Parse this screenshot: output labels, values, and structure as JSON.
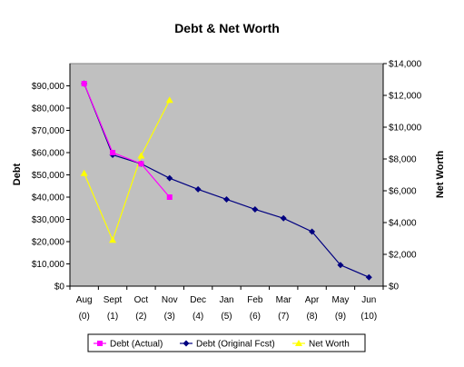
{
  "chart_data": {
    "type": "line",
    "title": "Debt & Net Worth",
    "ylabel_left": "Debt",
    "ylabel_right": "Net Worth",
    "xlabel": "",
    "categories": [
      "Aug",
      "Sept",
      "Oct",
      "Nov",
      "Dec",
      "Jan",
      "Feb",
      "Mar",
      "Apr",
      "May",
      "Jun"
    ],
    "category_sublabels": [
      "(0)",
      "(1)",
      "(2)",
      "(3)",
      "(4)",
      "(5)",
      "(6)",
      "(7)",
      "(8)",
      "(9)",
      "(10)"
    ],
    "ylim_left": [
      0,
      100000
    ],
    "ylim_right": [
      0,
      14000
    ],
    "yticks_left": [
      "$0",
      "$10,000",
      "$20,000",
      "$30,000",
      "$40,000",
      "$50,000",
      "$60,000",
      "$70,000",
      "$80,000",
      "$90,000"
    ],
    "yticks_right": [
      "$0",
      "$2,000",
      "$4,000",
      "$6,000",
      "$8,000",
      "$10,000",
      "$12,000",
      "$14,000"
    ],
    "plot_background": "#c0c0c0",
    "grid": false,
    "legend_position": "bottom",
    "series": [
      {
        "name": "Debt (Actual)",
        "axis": "left",
        "color": "#ff00ff",
        "marker": "square",
        "values": [
          91000,
          60000,
          55000,
          40000,
          null,
          null,
          null,
          null,
          null,
          null,
          null
        ]
      },
      {
        "name": "Debt (Original Fcst)",
        "axis": "left",
        "color": "#000080",
        "marker": "diamond",
        "values": [
          91000,
          59000,
          55000,
          48500,
          43500,
          39000,
          34500,
          30500,
          24500,
          9500,
          4000
        ]
      },
      {
        "name": "Net Worth",
        "axis": "right",
        "color": "#ffff00",
        "marker": "triangle",
        "values": [
          7100,
          2900,
          8200,
          11700,
          null,
          null,
          null,
          null,
          null,
          null,
          null
        ]
      }
    ]
  }
}
